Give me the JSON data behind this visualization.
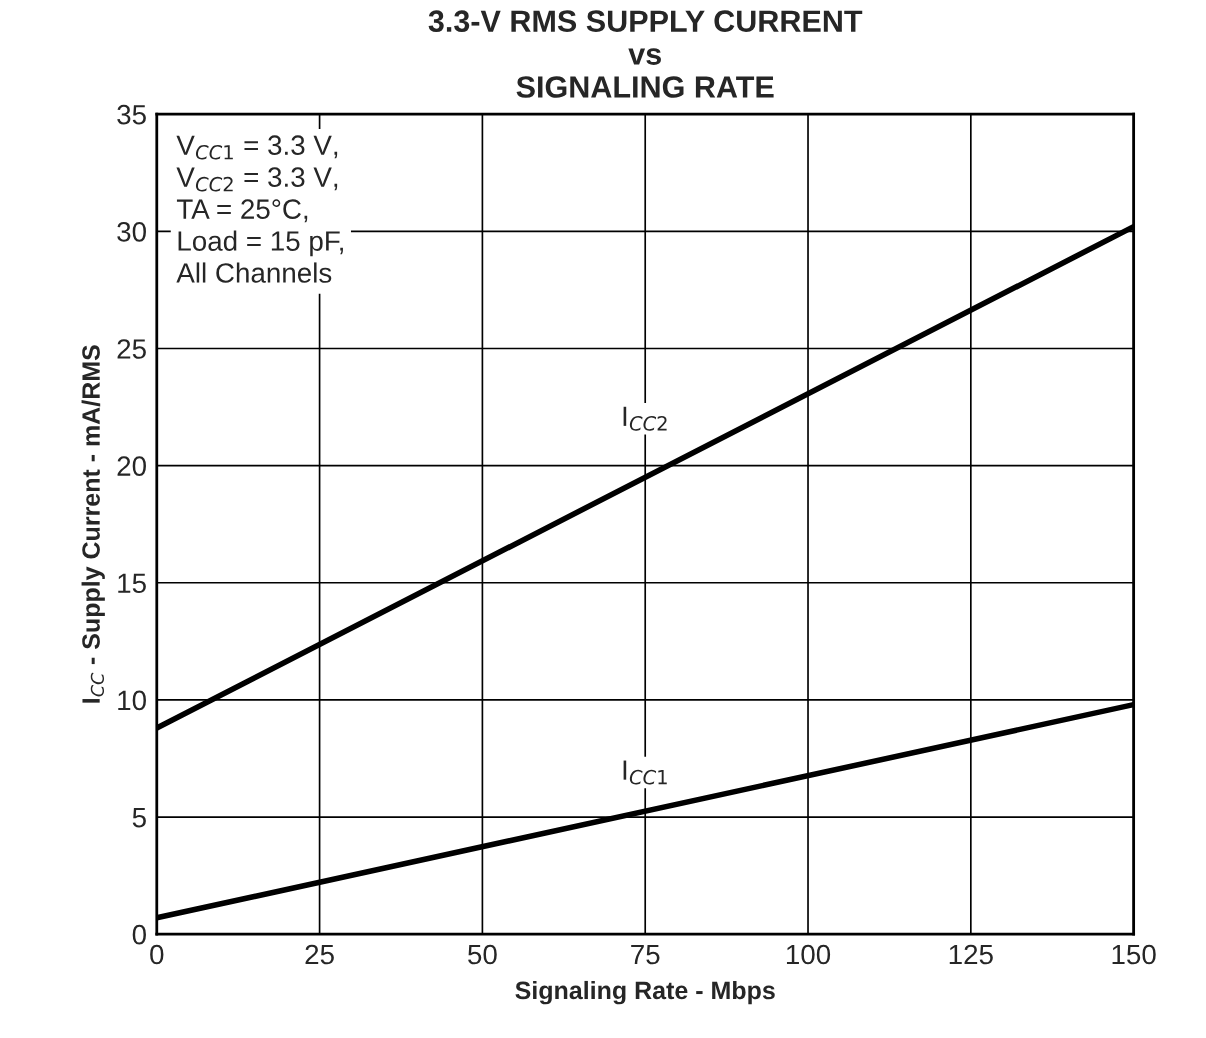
{
  "chart_data": {
    "type": "line",
    "title": "3.3-V RMS SUPPLY CURRENT\nvs\nSIGNALING RATE",
    "xlabel": "Signaling Rate - Mbps",
    "ylabel": "I$_{CC}$ - Supply Current - mA/RMS",
    "x": [
      0,
      150
    ],
    "series": [
      {
        "color": "#000000",
        "values": [
          8.8,
          30.2
        ]
      },
      {
        "color": "#000000",
        "values": [
          0.7,
          9.8
        ]
      }
    ],
    "annotations": [
      "V$_{CC1}$ = 3.3 V,\nV$_{CC2}$ = 3.3 V,\nTA = 25°C,\nLoad = 15 pF,\nAll Channels",
      {
        "text": "I$_{CC2}$",
        "x": 75,
        "y": 22
      },
      {
        "text": "I$_{CC1}$",
        "x": 75,
        "y": 6.9
      }
    ],
    "xlim": [
      0,
      150
    ],
    "ylim": [
      0,
      35
    ],
    "xticks": [
      0,
      25,
      50,
      75,
      100,
      125,
      150
    ],
    "yticks": [
      0,
      5,
      10,
      15,
      20,
      25,
      30,
      35
    ],
    "grid": true,
    "marker": "none",
    "line_style": "solid"
  }
}
